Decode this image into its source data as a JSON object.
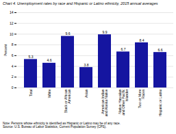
{
  "chart_data": {
    "type": "bar",
    "title": "Chart 4.  Unemployment rates by race and Hispanic or Latino ethnicity, 2015 annual averages",
    "ylabel": "Percent",
    "categories": [
      "Total",
      "White",
      "Black or African\nAmerican",
      "Asian",
      "American Indian\nand Alaska Native",
      "Native Hawaiian\nand Other Pacific\nIslander",
      "Two or More\nRaces",
      "Hispanic or Latino"
    ],
    "values": [
      5.3,
      4.6,
      9.6,
      3.8,
      9.9,
      6.7,
      8.4,
      6.6
    ],
    "color": "#1515a0",
    "ylim": [
      0,
      14
    ],
    "yticks": [
      0,
      2,
      4,
      6,
      8,
      10,
      12,
      14
    ],
    "grid": true,
    "data_labels": true,
    "notes": [
      "Note: Persons whose ethnicity is identified as Hispanic or Latino may be of any race.",
      "Source: U.S. Bureau of Labor Statistics, Current Population Survey (CPS)."
    ]
  }
}
